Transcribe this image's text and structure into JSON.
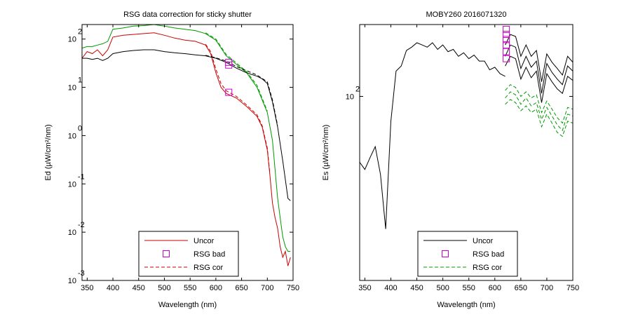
{
  "chart_data": [
    {
      "type": "line",
      "title": "RSG data correction for sticky shutter",
      "xlabel": "Wavelength (nm)",
      "ylabel": "Ed (µW/cm²/nm)",
      "xlim": [
        340,
        750
      ],
      "ylim": [
        0.001,
        200
      ],
      "yscale": "log",
      "grid": false,
      "legend_position": "bottom-right",
      "x_ticks": [
        350,
        400,
        450,
        500,
        550,
        600,
        650,
        700,
        750
      ],
      "y_ticks": [
        {
          "base": "10",
          "exp": "-3",
          "value": 0.001
        },
        {
          "base": "10",
          "exp": "-2",
          "value": 0.01
        },
        {
          "base": "10",
          "exp": "-1",
          "value": 0.1
        },
        {
          "base": "10",
          "exp": "0",
          "value": 1
        },
        {
          "base": "10",
          "exp": "1",
          "value": 10
        },
        {
          "base": "10",
          "exp": "2",
          "value": 100
        }
      ],
      "legend": [
        {
          "label": "Uncor",
          "style": "solid-line",
          "color": "#cc0000"
        },
        {
          "label": "RSG bad",
          "style": "square-marker",
          "color": "#cc00cc"
        },
        {
          "label": "RSG cor",
          "style": "dashed-line",
          "color": "#cc0000"
        }
      ],
      "series": [
        {
          "name": "Uncor",
          "color": "#cc0000",
          "dash": false,
          "x": [
            340,
            350,
            360,
            370,
            380,
            390,
            400,
            420,
            440,
            460,
            480,
            500,
            520,
            540,
            560,
            580,
            590,
            600,
            610,
            620,
            640,
            660,
            680,
            690,
            700,
            705,
            710,
            715,
            720,
            725,
            730,
            735,
            740,
            745
          ],
          "y": [
            40,
            55,
            50,
            60,
            45,
            60,
            110,
            120,
            125,
            130,
            135,
            120,
            105,
            95,
            90,
            75,
            50,
            20,
            10,
            7.5,
            6,
            4,
            2.5,
            1.5,
            0.5,
            0.15,
            0.04,
            0.02,
            0.012,
            0.005,
            0.003,
            0.004,
            0.002,
            0.003
          ]
        },
        {
          "name": "",
          "color": "#009900",
          "dash": false,
          "x": [
            340,
            350,
            360,
            370,
            380,
            390,
            400,
            420,
            440,
            460,
            480,
            500,
            520,
            540,
            560,
            580,
            600,
            620,
            640,
            660,
            680,
            700,
            710,
            715,
            720,
            725,
            730,
            735,
            740,
            745
          ],
          "y": [
            65,
            70,
            70,
            75,
            80,
            90,
            160,
            170,
            185,
            190,
            200,
            185,
            170,
            160,
            150,
            130,
            95,
            45,
            30,
            20,
            10,
            3,
            0.8,
            0.2,
            0.05,
            0.02,
            0.008,
            0.005,
            0.004,
            0.004
          ]
        },
        {
          "name": "",
          "color": "#000000",
          "dash": false,
          "x": [
            340,
            350,
            360,
            370,
            380,
            390,
            400,
            420,
            440,
            460,
            480,
            500,
            520,
            540,
            560,
            580,
            600,
            620,
            640,
            660,
            680,
            690,
            700,
            710,
            720,
            730,
            740,
            745
          ],
          "y": [
            40,
            40,
            38,
            40,
            36,
            40,
            50,
            55,
            58,
            60,
            60,
            55,
            52,
            50,
            47,
            45,
            40,
            33,
            25,
            20,
            17,
            15,
            12,
            5,
            1.5,
            0.3,
            0.05,
            0.045
          ]
        },
        {
          "name": "",
          "color": "#cc0000",
          "dash": true,
          "x": [
            580,
            590,
            600,
            610,
            620,
            640,
            660,
            680,
            690,
            700,
            705
          ],
          "y": [
            78,
            55,
            24,
            12,
            8.5,
            6.5,
            4.3,
            2.7,
            1.6,
            0.55,
            0.16
          ]
        },
        {
          "name": "",
          "color": "#009900",
          "dash": true,
          "x": [
            580,
            600,
            620,
            640,
            660,
            680,
            700
          ],
          "y": [
            135,
            100,
            48,
            32,
            21,
            11,
            3.2
          ]
        },
        {
          "name": "",
          "color": "#000000",
          "dash": true,
          "x": [
            580,
            600,
            620,
            640,
            660,
            680,
            700,
            710,
            720
          ],
          "y": [
            46,
            41,
            35,
            27,
            22,
            18,
            13,
            5.5,
            1.6
          ]
        }
      ],
      "markers": [
        {
          "x": 625,
          "y": 33
        },
        {
          "x": 625,
          "y": 29
        },
        {
          "x": 625,
          "y": 7.9
        }
      ]
    },
    {
      "type": "line",
      "title": "MOBY260  2016071320",
      "xlabel": "Wavelength (nm)",
      "ylabel": "Es (µW/cm²/nm)",
      "xlim": [
        340,
        750
      ],
      "ylim": [
        30,
        160
      ],
      "yscale": "log",
      "grid": false,
      "legend_position": "bottom-right",
      "x_ticks": [
        350,
        400,
        450,
        500,
        550,
        600,
        650,
        700,
        750
      ],
      "y_ticks": [
        {
          "base": "10",
          "exp": "2",
          "value": 100
        }
      ],
      "legend": [
        {
          "label": "Uncor",
          "style": "solid-line",
          "color": "#000000"
        },
        {
          "label": "RSG bad",
          "style": "square-marker",
          "color": "#cc00cc"
        },
        {
          "label": "RSG cor",
          "style": "dashed-line",
          "color": "#009900"
        }
      ],
      "series": [
        {
          "name": "Uncor",
          "color": "#000000",
          "dash": false,
          "x": [
            340,
            350,
            360,
            370,
            380,
            390,
            400,
            410,
            420,
            430,
            440,
            450,
            460,
            470,
            480,
            490,
            500,
            510,
            520,
            530,
            540,
            550,
            560,
            570,
            580,
            590,
            600,
            610,
            620
          ],
          "y": [
            65,
            62,
            67,
            72,
            60,
            42,
            85,
            118,
            122,
            135,
            138,
            142,
            140,
            138,
            142,
            136,
            140,
            134,
            136,
            130,
            133,
            128,
            131,
            126,
            126,
            119,
            121,
            116,
            114
          ]
        },
        {
          "name": "",
          "color": "#000000",
          "dash": false,
          "x": [
            620,
            630,
            640,
            650,
            660,
            670,
            680,
            690,
            700,
            710,
            720,
            730,
            740,
            750
          ],
          "y": [
            140,
            150,
            148,
            130,
            140,
            130,
            135,
            110,
            132,
            125,
            120,
            115,
            130,
            125
          ]
        },
        {
          "name": "",
          "color": "#000000",
          "dash": false,
          "x": [
            620,
            630,
            640,
            650,
            660,
            670,
            680,
            690,
            700,
            710,
            720,
            730,
            740,
            750
          ],
          "y": [
            130,
            140,
            138,
            120,
            130,
            121,
            126,
            102,
            124,
            117,
            112,
            108,
            122,
            118
          ]
        },
        {
          "name": "",
          "color": "#000000",
          "dash": false,
          "x": [
            620,
            630,
            640,
            650,
            660,
            670,
            680,
            690,
            700,
            710,
            720,
            730,
            740,
            750
          ],
          "y": [
            122,
            130,
            128,
            112,
            121,
            113,
            118,
            96,
            116,
            110,
            105,
            102,
            114,
            111
          ]
        },
        {
          "name": "",
          "color": "#009900",
          "dash": true,
          "x": [
            620,
            630,
            640,
            650,
            660,
            670,
            680,
            690,
            700,
            710,
            720,
            730,
            740,
            750
          ],
          "y": [
            104,
            108,
            106,
            100,
            103,
            99,
            101,
            90,
            97,
            92,
            87,
            84,
            93,
            92
          ]
        },
        {
          "name": "",
          "color": "#009900",
          "dash": true,
          "x": [
            620,
            630,
            640,
            650,
            660,
            670,
            680,
            690,
            700,
            710,
            720,
            730,
            740,
            750
          ],
          "y": [
            99,
            103,
            101,
            95,
            99,
            94,
            96,
            86,
            93,
            88,
            83,
            80,
            89,
            88
          ]
        },
        {
          "name": "",
          "color": "#009900",
          "dash": true,
          "x": [
            620,
            630,
            640,
            650,
            660,
            670,
            680,
            690,
            700,
            710,
            720,
            730,
            740,
            750
          ],
          "y": [
            95,
            98,
            96,
            91,
            94,
            90,
            92,
            82,
            89,
            84,
            79,
            77,
            85,
            84
          ]
        }
      ],
      "markers": [
        {
          "x": 622,
          "y": 155
        },
        {
          "x": 622,
          "y": 150
        },
        {
          "x": 622,
          "y": 145
        },
        {
          "x": 622,
          "y": 140
        },
        {
          "x": 622,
          "y": 134
        },
        {
          "x": 622,
          "y": 128
        }
      ]
    }
  ]
}
